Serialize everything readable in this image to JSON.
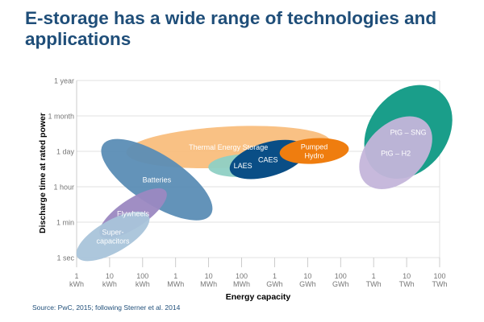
{
  "slide": {
    "title": "E-storage has a wide range of technologies and applications",
    "source": "Source: PwC, 2015; following Sterner et al. 2014"
  },
  "chart_data": {
    "type": "bubble-region",
    "xlabel": "Energy capacity",
    "ylabel": "Discharge time at rated power",
    "x_ticks": [
      {
        "line1": "1",
        "line2": "kWh"
      },
      {
        "line1": "10",
        "line2": "kWh"
      },
      {
        "line1": "100",
        "line2": "kWh"
      },
      {
        "line1": "1",
        "line2": "MWh"
      },
      {
        "line1": "10",
        "line2": "MWh"
      },
      {
        "line1": "100",
        "line2": "MWh"
      },
      {
        "line1": "1",
        "line2": "GWh"
      },
      {
        "line1": "10",
        "line2": "GWh"
      },
      {
        "line1": "100",
        "line2": "GWh"
      },
      {
        "line1": "1",
        "line2": "TWh"
      },
      {
        "line1": "10",
        "line2": "TWh"
      },
      {
        "line1": "100",
        "line2": "TWh"
      }
    ],
    "y_ticks": [
      "1 sec",
      "1 min",
      "1 hour",
      "1 day",
      "1 month",
      "1 year"
    ],
    "regions": [
      {
        "name": "Thermal Energy Storage",
        "label_lines": [
          "Thermal Energy Storage"
        ],
        "x_center": 4.6,
        "y_center": 3.12,
        "x_radius": 3.1,
        "y_radius": 0.58,
        "rotation": -3,
        "color": "#f8bc7a",
        "opacity": 0.92,
        "text_color": "#ffffff"
      },
      {
        "name": "Batteries",
        "label_lines": [
          "Batteries"
        ],
        "x_center": 2.43,
        "y_center": 2.2,
        "x_radius": 1.95,
        "y_radius": 0.7,
        "rotation": 33,
        "color": "#5b8db5",
        "opacity": 0.95,
        "text_color": "#ffffff"
      },
      {
        "name": "Flywheels",
        "label_lines": [
          "Flywheels"
        ],
        "x_center": 1.71,
        "y_center": 1.25,
        "x_radius": 1.2,
        "y_radius": 0.4,
        "rotation": -34,
        "color": "#9b88c1",
        "opacity": 0.95,
        "text_color": "#ffffff"
      },
      {
        "name": "Super-capacitors",
        "label_lines": [
          "Super-",
          "capacitors"
        ],
        "x_center": 1.1,
        "y_center": 0.6,
        "x_radius": 1.25,
        "y_radius": 0.45,
        "rotation": -30,
        "color": "#a9c4da",
        "opacity": 0.95,
        "text_color": "#ffffff"
      },
      {
        "name": "LAES",
        "label_lines": [
          "LAES"
        ],
        "x_center": 5.04,
        "y_center": 2.6,
        "x_radius": 1.05,
        "y_radius": 0.32,
        "rotation": -3,
        "color": "#8fd0c4",
        "opacity": 0.95,
        "text_color": "#ffffff"
      },
      {
        "name": "CAES",
        "label_lines": [
          "CAES"
        ],
        "x_center": 5.8,
        "y_center": 2.77,
        "x_radius": 1.2,
        "y_radius": 0.48,
        "rotation": -16,
        "color": "#0a4e86",
        "opacity": 1,
        "text_color": "#ffffff"
      },
      {
        "name": "Pumped Hydro",
        "label_lines": [
          "Pumped",
          "Hydro"
        ],
        "x_center": 7.2,
        "y_center": 3.01,
        "x_radius": 1.05,
        "y_radius": 0.36,
        "rotation": -4,
        "color": "#ef7d0f",
        "opacity": 1,
        "text_color": "#ffffff"
      },
      {
        "name": "PtG – SNG",
        "label_lines": [
          "PtG – SNG"
        ],
        "x_center": 10.05,
        "y_center": 3.55,
        "x_radius": 1.55,
        "y_radius": 1.1,
        "rotation": -52,
        "color": "#1a9e8a",
        "opacity": 1,
        "text_color": "#ffffff"
      },
      {
        "name": "PtG – H2",
        "label_lines": [
          "PtG – H2"
        ],
        "x_center": 9.67,
        "y_center": 2.96,
        "x_radius": 1.3,
        "y_radius": 0.81,
        "rotation": -45,
        "color": "#c4b5da",
        "opacity": 0.95,
        "text_color": "#ffffff"
      }
    ]
  }
}
